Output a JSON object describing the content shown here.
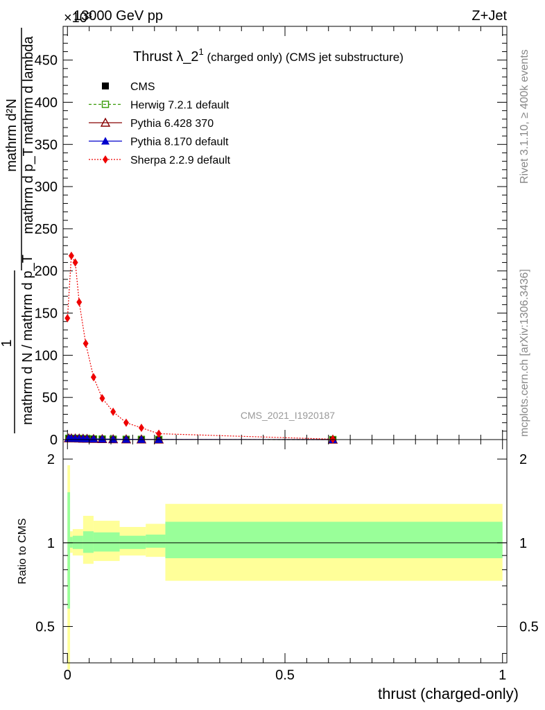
{
  "header": {
    "left": "13000 GeV pp",
    "right": "Z+Jet",
    "exponent": "×10³"
  },
  "side": {
    "rivet": "Rivet 3.1.10, ≥ 400k events",
    "mcplots": "mcplots.cern.ch [arXiv:1306.3436]"
  },
  "watermark": "CMS_2021_I1920187",
  "ylabel_main": {
    "top_numer": "mathrm d²N",
    "top_denom": "mathrm d p_T mathrm d lambda",
    "one": "1",
    "bottom": "mathrm d N / mathrm d p_T"
  },
  "chart_data": [
    {
      "type": "line",
      "title": "Thrust λ_2¹ (charged only) (CMS jet substructure)",
      "title_main": "Thrust λ_2",
      "title_sup": "1",
      "title_rest": " (charged only) (CMS jet substructure)",
      "xlabel": "thrust (charged-only)",
      "ylabel": "1/(dN/dpT) d²N/(dpT dλ)",
      "xlim": [
        -0.01,
        1.01
      ],
      "ylim": [
        0,
        490
      ],
      "yscale": 1000,
      "yticks": [
        "0",
        "50",
        "100",
        "150",
        "200",
        "250",
        "300",
        "350",
        "400",
        "450"
      ],
      "ytick_values": [
        0,
        50,
        100,
        150,
        200,
        250,
        300,
        350,
        400,
        450
      ],
      "xticks": [
        "0",
        "0.5",
        "1"
      ],
      "xtick_values": [
        0,
        0.5,
        1
      ],
      "legend_position": "top-left",
      "series": [
        {
          "name": "CMS",
          "color": "#000000",
          "marker": "square",
          "x": [
            0.003,
            0.009,
            0.018,
            0.027,
            0.036,
            0.045,
            0.06,
            0.08,
            0.105,
            0.135,
            0.17,
            0.21,
            0.61
          ],
          "y": [
            1.5,
            1.5,
            1.4,
            1.3,
            1.1,
            1.0,
            0.8,
            0.6,
            0.4,
            0.3,
            0.2,
            0.1,
            0.01
          ]
        },
        {
          "name": "Herwig 7.2.1 default",
          "color": "#339900",
          "marker": "open-square",
          "dash": "4,3",
          "x": [
            0.003,
            0.009,
            0.018,
            0.027,
            0.036,
            0.045,
            0.06,
            0.08,
            0.105,
            0.135,
            0.17,
            0.21,
            0.61
          ],
          "y": [
            1.5,
            1.5,
            1.4,
            1.3,
            1.1,
            1.0,
            0.8,
            0.6,
            0.4,
            0.3,
            0.2,
            0.1,
            0.01
          ]
        },
        {
          "name": "Pythia 6.428 370",
          "color": "#880000",
          "marker": "open-triangle",
          "x": [
            0.003,
            0.009,
            0.018,
            0.027,
            0.036,
            0.045,
            0.06,
            0.08,
            0.105,
            0.135,
            0.17,
            0.21,
            0.61
          ],
          "y": [
            1.5,
            1.5,
            1.4,
            1.3,
            1.1,
            1.0,
            0.8,
            0.6,
            0.4,
            0.3,
            0.2,
            0.1,
            0.01
          ]
        },
        {
          "name": "Pythia 8.170 default",
          "color": "#0000cc",
          "marker": "triangle",
          "x": [
            0.003,
            0.009,
            0.018,
            0.027,
            0.036,
            0.045,
            0.06,
            0.08,
            0.105,
            0.135,
            0.17,
            0.21,
            0.61
          ],
          "y": [
            1.5,
            1.5,
            1.4,
            1.3,
            1.1,
            1.0,
            0.8,
            0.6,
            0.4,
            0.3,
            0.2,
            0.1,
            0.01
          ]
        },
        {
          "name": "Sherpa 2.2.9 default",
          "color": "#ee0000",
          "marker": "diamond",
          "dash": "2,2",
          "x": [
            0.0,
            0.009,
            0.018,
            0.027,
            0.042,
            0.06,
            0.08,
            0.105,
            0.135,
            0.17,
            0.21,
            0.61
          ],
          "y": [
            144,
            218,
            210,
            163,
            114,
            74,
            49,
            33,
            20,
            14,
            7,
            0.5
          ]
        }
      ]
    },
    {
      "type": "area",
      "title": "",
      "xlabel": "thrust (charged-only)",
      "ylabel": "Ratio to CMS",
      "yscale_type": "log",
      "ylim": [
        0.37,
        2.35
      ],
      "xlim": [
        -0.01,
        1.01
      ],
      "yticks": [
        "0.5",
        "1",
        "2"
      ],
      "ytick_values": [
        0.5,
        1,
        2
      ],
      "xticks": [
        "0",
        "0.5",
        "1"
      ],
      "xtick_values": [
        0,
        0.5,
        1
      ],
      "reference_line": 1,
      "bands": {
        "edges": [
          0.0,
          0.006,
          0.012,
          0.036,
          0.06,
          0.12,
          0.18,
          0.225,
          1.0
        ],
        "stat_lo": [
          0.58,
          0.96,
          0.95,
          0.92,
          0.93,
          0.95,
          0.96,
          0.88
        ],
        "stat_hi": [
          1.52,
          1.05,
          1.06,
          1.1,
          1.09,
          1.06,
          1.07,
          1.19
        ],
        "total_lo": [
          0.35,
          0.92,
          0.9,
          0.84,
          0.86,
          0.9,
          0.89,
          0.73
        ],
        "total_hi": [
          1.9,
          1.1,
          1.12,
          1.25,
          1.2,
          1.14,
          1.17,
          1.38
        ],
        "stat_color": "#99ff99",
        "total_color": "#ffff99"
      }
    }
  ]
}
